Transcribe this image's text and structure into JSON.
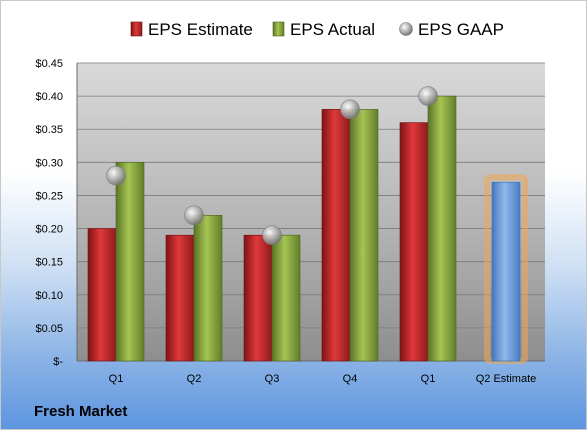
{
  "company": "Fresh Market",
  "colors": {
    "estimate": "#c0282a",
    "actual": "#8aa83c",
    "gaap": "#a8a8a8",
    "projected": "#6a9ad6",
    "projected_glow": "#f2a550"
  },
  "chart_data": {
    "type": "bar",
    "categories": [
      "Q1",
      "Q2",
      "Q3",
      "Q4",
      "Q1",
      "Q2 Estimate"
    ],
    "series": [
      {
        "name": "EPS Estimate",
        "values": [
          0.2,
          0.19,
          0.19,
          0.38,
          0.36,
          0.27
        ]
      },
      {
        "name": "EPS Actual",
        "values": [
          0.3,
          0.22,
          0.19,
          0.38,
          0.4,
          null
        ]
      },
      {
        "name": "EPS GAAP",
        "type": "scatter",
        "values": [
          0.28,
          0.22,
          0.19,
          0.38,
          0.4,
          null
        ]
      }
    ],
    "yticks": [
      "$-",
      "$0.05",
      "$0.10",
      "$0.15",
      "$0.20",
      "$0.25",
      "$0.30",
      "$0.35",
      "$0.40",
      "$0.45"
    ],
    "ylim": [
      0,
      0.45
    ],
    "legend": "top",
    "grid": true
  }
}
